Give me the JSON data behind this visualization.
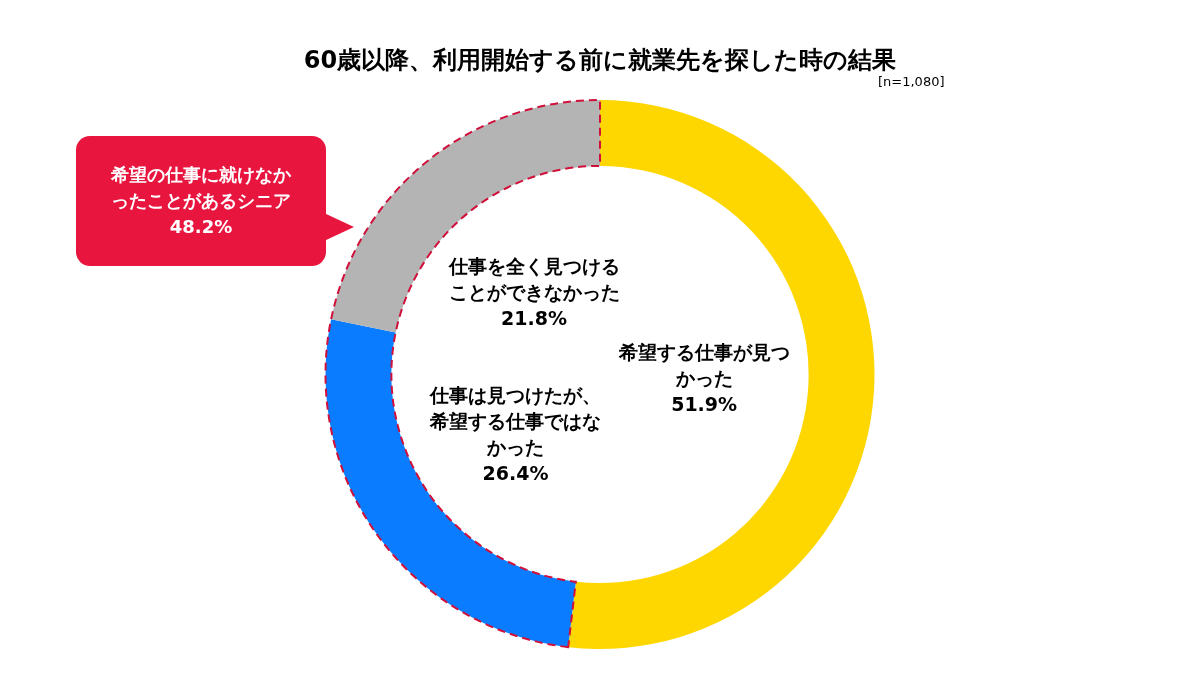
{
  "chart_data": {
    "type": "donut",
    "title": "60歳以降、利用開始する前に就業先を探した時の結果",
    "annotations": [
      "[n=1,080]",
      "希望の仕事に就けなかったことがあるシニア 48.2%"
    ],
    "categories": [
      "希望する仕事が見つかった",
      "仕事は見つけたが、希望する仕事ではなかった",
      "仕事を全く見つけることができなかった"
    ],
    "values": [
      51.9,
      26.4,
      21.8
    ],
    "value_labels": [
      "51.9%",
      "26.4%",
      "21.8%"
    ],
    "colors": [
      "#ffd700",
      "#0a7cff",
      "#b4b4b4"
    ],
    "legend": false
  }
}
